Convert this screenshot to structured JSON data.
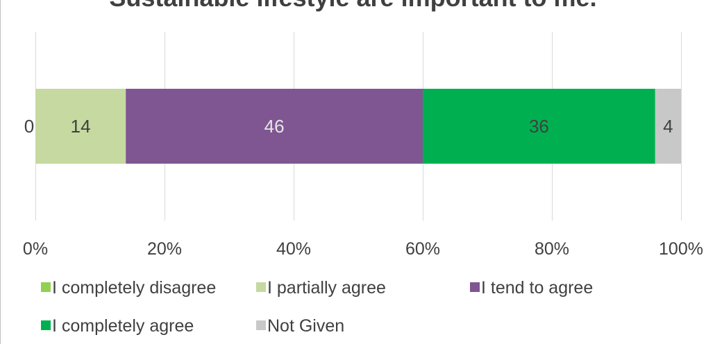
{
  "chart_data": {
    "type": "bar",
    "orientation": "horizontal",
    "stacked": "percent",
    "title": "Sustainable lifestyle are important to me.",
    "categories": [
      ""
    ],
    "series": [
      {
        "name": "I completely disagree",
        "values": [
          0
        ],
        "color": "#92d050",
        "label_color": "#404040"
      },
      {
        "name": "I partially agree",
        "values": [
          14
        ],
        "color": "#c5d9a0",
        "label_color": "#404040"
      },
      {
        "name": "I tend to agree",
        "values": [
          46
        ],
        "color": "#7f5692",
        "label_color": "#e6e6e6"
      },
      {
        "name": "I completely agree",
        "values": [
          36
        ],
        "color": "#00b050",
        "label_color": "#404040"
      },
      {
        "name": "Not Given",
        "values": [
          4
        ],
        "color": "#c8c8c8",
        "label_color": "#404040"
      }
    ],
    "x_ticks": [
      "0%",
      "20%",
      "40%",
      "60%",
      "80%",
      "100%"
    ],
    "xlim": [
      0,
      100
    ],
    "grid": true,
    "legend_position": "bottom"
  }
}
